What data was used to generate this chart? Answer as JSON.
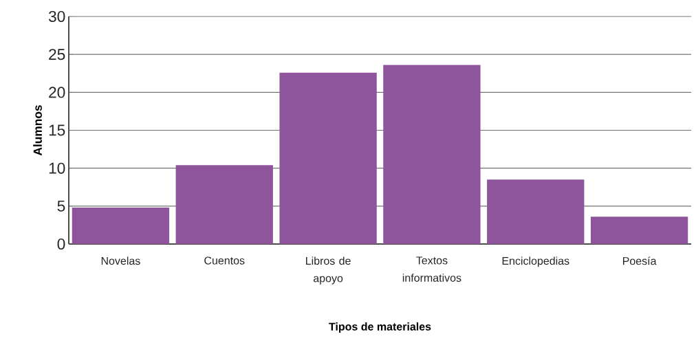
{
  "chart_data": {
    "type": "bar",
    "xlabel": "Tipos de materiales",
    "ylabel": "Alumnos",
    "categories": [
      "Novelas",
      "Cuentos",
      "Libros de apoyo",
      "Textos informativos",
      "Enciclopedias",
      "Poesía"
    ],
    "values": [
      4.8,
      10.4,
      22.6,
      23.6,
      8.5,
      3.6
    ],
    "color": "#8e559c",
    "ylim": [
      0,
      30
    ],
    "yticks": [
      0,
      5,
      10,
      15,
      20,
      25,
      30
    ],
    "grid": "y"
  }
}
